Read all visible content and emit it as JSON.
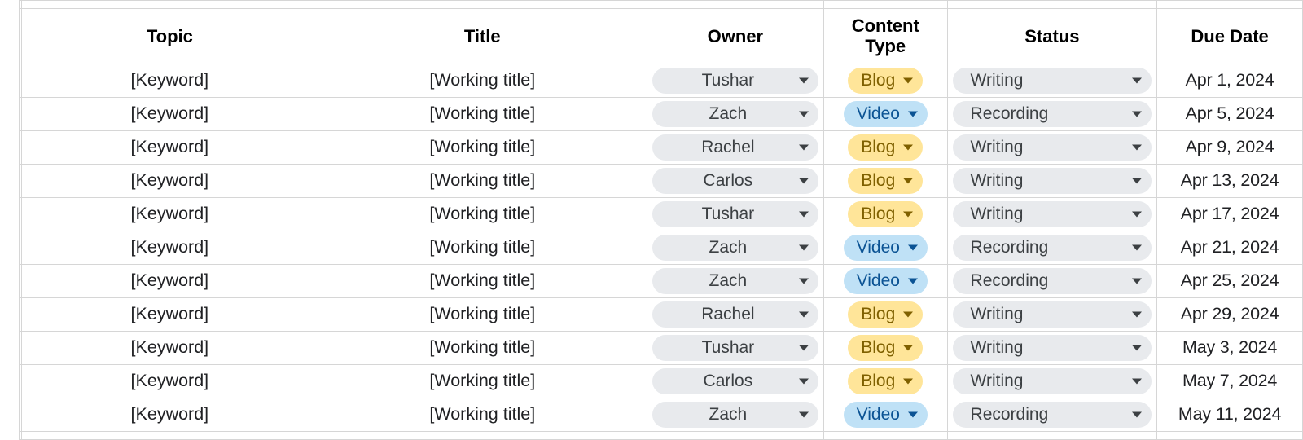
{
  "colors": {
    "border": "#d6d6d6",
    "chip_gray_bg": "#e8eaed",
    "chip_gray_text": "#3c4043",
    "chip_gray_caret": "#3c4043",
    "chip_blog_bg": "#ffe599",
    "chip_blog_text": "#7f6000",
    "chip_blog_caret": "#7f6000",
    "chip_video_bg": "#bfe1f6",
    "chip_video_text": "#0b5394",
    "chip_video_caret": "#0b5394",
    "text": "#202124",
    "header_text": "#000000",
    "background": "#ffffff"
  },
  "columns": {
    "topic": "Topic",
    "title": "Title",
    "owner": "Owner",
    "content_type": "Content\nType",
    "status": "Status",
    "due_date": "Due Date"
  },
  "rows": [
    {
      "topic": "[Keyword]",
      "title": "[Working title]",
      "owner": "Tushar",
      "content_type": "Blog",
      "status": "Writing",
      "due_date": "Apr 1, 2024"
    },
    {
      "topic": "[Keyword]",
      "title": "[Working title]",
      "owner": "Zach",
      "content_type": "Video",
      "status": "Recording",
      "due_date": "Apr 5, 2024"
    },
    {
      "topic": "[Keyword]",
      "title": "[Working title]",
      "owner": "Rachel",
      "content_type": "Blog",
      "status": "Writing",
      "due_date": "Apr 9, 2024"
    },
    {
      "topic": "[Keyword]",
      "title": "[Working title]",
      "owner": "Carlos",
      "content_type": "Blog",
      "status": "Writing",
      "due_date": "Apr 13, 2024"
    },
    {
      "topic": "[Keyword]",
      "title": "[Working title]",
      "owner": "Tushar",
      "content_type": "Blog",
      "status": "Writing",
      "due_date": "Apr 17, 2024"
    },
    {
      "topic": "[Keyword]",
      "title": "[Working title]",
      "owner": "Zach",
      "content_type": "Video",
      "status": "Recording",
      "due_date": "Apr 21, 2024"
    },
    {
      "topic": "[Keyword]",
      "title": "[Working title]",
      "owner": "Zach",
      "content_type": "Video",
      "status": "Recording",
      "due_date": "Apr 25, 2024"
    },
    {
      "topic": "[Keyword]",
      "title": "[Working title]",
      "owner": "Rachel",
      "content_type": "Blog",
      "status": "Writing",
      "due_date": "Apr 29, 2024"
    },
    {
      "topic": "[Keyword]",
      "title": "[Working title]",
      "owner": "Tushar",
      "content_type": "Blog",
      "status": "Writing",
      "due_date": "May 3, 2024"
    },
    {
      "topic": "[Keyword]",
      "title": "[Working title]",
      "owner": "Carlos",
      "content_type": "Blog",
      "status": "Writing",
      "due_date": "May 7, 2024"
    },
    {
      "topic": "[Keyword]",
      "title": "[Working title]",
      "owner": "Zach",
      "content_type": "Video",
      "status": "Recording",
      "due_date": "May 11, 2024"
    }
  ],
  "chip_styles": {
    "owner": {
      "variant": "gray",
      "width": "wide",
      "align": "center"
    },
    "status": {
      "variant": "gray",
      "width": "wide",
      "align": "left"
    },
    "Blog": {
      "variant": "blog",
      "width": "narrow",
      "align": "center"
    },
    "Video": {
      "variant": "video",
      "width": "narrow",
      "align": "center"
    }
  }
}
